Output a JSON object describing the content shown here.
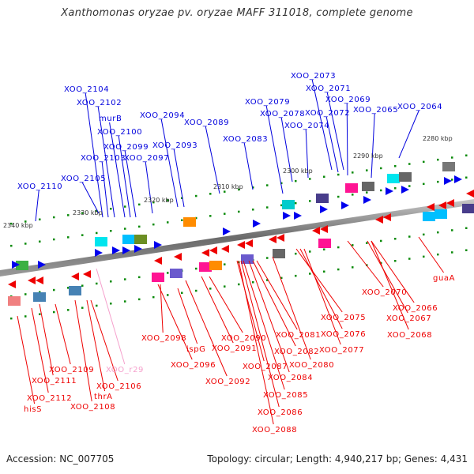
{
  "title": "Xanthomonas oryzae pv. oryzae MAFF 311018, complete genome",
  "footer": {
    "accession": "Accession: NC_007705",
    "summary": "Topology: circular; Length: 4,940,217 bp; Genes: 4,431"
  },
  "colors": {
    "forward_label": "#0000dd",
    "reverse_label": "#ee0000",
    "rna_label": "#f5a0cc",
    "backbone": "#777777",
    "tick": "#0a8a0a"
  },
  "scale_labels": [
    "2280 kbp",
    "2290 kbp",
    "2300 kbp",
    "2310 kbp",
    "2320 kbp",
    "2330 kbp",
    "2340 kbp"
  ],
  "forward_genes": [
    "XOO_2064",
    "XOO_2065",
    "XOO_2069",
    "XOO_2071",
    "XOO_2072",
    "XOO_2073",
    "XOO_2074",
    "XOO_2078",
    "XOO_2079",
    "XOO_2083",
    "XOO_2089",
    "XOO_2093",
    "XOO_2094",
    "XOO_2097",
    "XOO_2099",
    "XOO_2100",
    "murB",
    "XOO_2102",
    "XOO_2103",
    "XOO_2104",
    "XOO_2105",
    "XOO_2110"
  ],
  "reverse_genes": [
    "guaA",
    "XOO_2066",
    "XOO_2067",
    "XOO_2068",
    "XOO_2070",
    "XOO_2075",
    "XOO_2076",
    "XOO_2077",
    "XOO_2080",
    "XOO_2081",
    "XOO_2082",
    "XOO_2084",
    "XOO_2085",
    "XOO_2086",
    "XOO_2087",
    "XOO_2088",
    "XOO_2090",
    "XOO_2091",
    "XOO_2092",
    "XOO_2096",
    "ispG",
    "XOO_2098",
    "XOO_2106",
    "thrA",
    "XOO_2108",
    "XOO_2109",
    "XOO_2111",
    "XOO_2112",
    "hisS"
  ],
  "rna_genes": [
    "XOO_r29"
  ]
}
